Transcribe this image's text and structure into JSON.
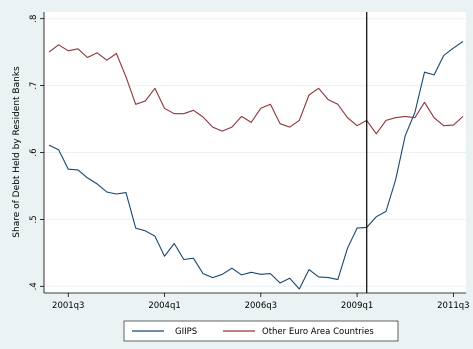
{
  "chart_data": {
    "type": "line",
    "title": "",
    "xlabel": "",
    "ylabel": "Share of Debt Held by Resident Banks",
    "ylim": [
      0.39,
      0.81
    ],
    "yticks": [
      ".4",
      ".5",
      ".6",
      ".7",
      ".8"
    ],
    "ytick_values": [
      0.4,
      0.5,
      0.6,
      0.7,
      0.8
    ],
    "xtick_labels": [
      "2001q3",
      "2004q1",
      "2006q3",
      "2009q1",
      "2011q3"
    ],
    "xtick_index": [
      2,
      12,
      22,
      32,
      42
    ],
    "vline_index": 33,
    "grid": "horizontal",
    "legend_position": "bottom",
    "x": [
      "2001q1",
      "2001q2",
      "2001q3",
      "2001q4",
      "2002q1",
      "2002q2",
      "2002q3",
      "2002q4",
      "2003q1",
      "2003q2",
      "2003q3",
      "2003q4",
      "2004q1",
      "2004q2",
      "2004q3",
      "2004q4",
      "2005q1",
      "2005q2",
      "2005q3",
      "2005q4",
      "2006q1",
      "2006q2",
      "2006q3",
      "2006q4",
      "2007q1",
      "2007q2",
      "2007q3",
      "2007q4",
      "2008q1",
      "2008q2",
      "2008q3",
      "2008q4",
      "2009q1",
      "2009q2",
      "2009q3",
      "2009q4",
      "2010q1",
      "2010q2",
      "2010q3",
      "2010q4",
      "2011q1",
      "2011q2",
      "2011q3",
      "2011q4"
    ],
    "series": [
      {
        "name": "GIIPS",
        "color": "#1a476f",
        "values": [
          0.611,
          0.604,
          0.575,
          0.574,
          0.562,
          0.553,
          0.541,
          0.538,
          0.54,
          0.487,
          0.483,
          0.475,
          0.445,
          0.464,
          0.44,
          0.442,
          0.419,
          0.413,
          0.418,
          0.427,
          0.417,
          0.421,
          0.418,
          0.419,
          0.405,
          0.412,
          0.396,
          0.425,
          0.414,
          0.413,
          0.41,
          0.457,
          0.487,
          0.488,
          0.504,
          0.512,
          0.559,
          0.625,
          0.66,
          0.72,
          0.716,
          0.745,
          0.756,
          0.766
        ]
      },
      {
        "name": "Other Euro Area Countries",
        "color": "#90353b",
        "values": [
          0.75,
          0.761,
          0.752,
          0.755,
          0.742,
          0.749,
          0.738,
          0.748,
          0.713,
          0.672,
          0.677,
          0.696,
          0.666,
          0.658,
          0.658,
          0.663,
          0.653,
          0.638,
          0.632,
          0.638,
          0.654,
          0.645,
          0.666,
          0.672,
          0.643,
          0.638,
          0.648,
          0.686,
          0.696,
          0.679,
          0.672,
          0.652,
          0.64,
          0.648,
          0.628,
          0.648,
          0.652,
          0.654,
          0.652,
          0.675,
          0.652,
          0.64,
          0.641,
          0.654
        ]
      }
    ]
  }
}
